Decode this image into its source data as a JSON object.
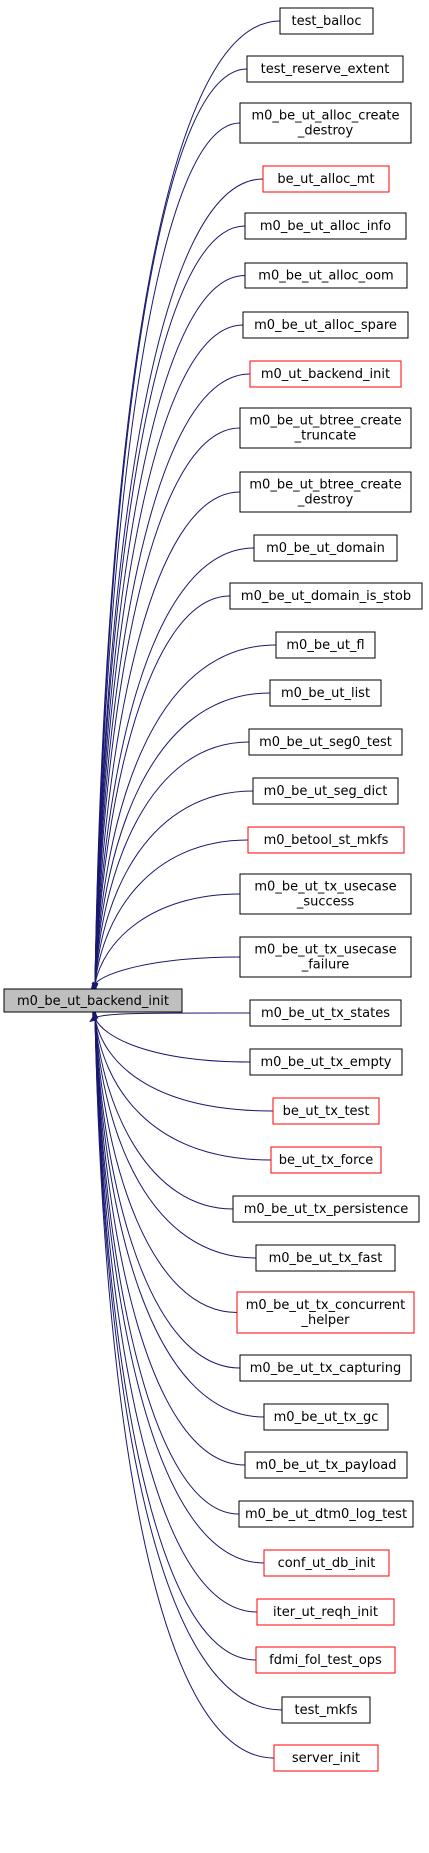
{
  "root": {
    "label": "m0_be_ut_backend_init"
  },
  "colors": {
    "edge": "#191970",
    "box_black": "#000000",
    "box_red": "#ff0000",
    "root_fill": "#bfbfbf"
  },
  "callers": [
    {
      "lines": [
        "test_balloc"
      ],
      "color": "black"
    },
    {
      "lines": [
        "test_reserve_extent"
      ],
      "color": "black"
    },
    {
      "lines": [
        "m0_be_ut_alloc_create",
        "_destroy"
      ],
      "color": "black"
    },
    {
      "lines": [
        "be_ut_alloc_mt"
      ],
      "color": "red"
    },
    {
      "lines": [
        "m0_be_ut_alloc_info"
      ],
      "color": "black"
    },
    {
      "lines": [
        "m0_be_ut_alloc_oom"
      ],
      "color": "black"
    },
    {
      "lines": [
        "m0_be_ut_alloc_spare"
      ],
      "color": "black"
    },
    {
      "lines": [
        "m0_ut_backend_init"
      ],
      "color": "red"
    },
    {
      "lines": [
        "m0_be_ut_btree_create",
        "_truncate"
      ],
      "color": "black"
    },
    {
      "lines": [
        "m0_be_ut_btree_create",
        "_destroy"
      ],
      "color": "black"
    },
    {
      "lines": [
        "m0_be_ut_domain"
      ],
      "color": "black"
    },
    {
      "lines": [
        "m0_be_ut_domain_is_stob"
      ],
      "color": "black"
    },
    {
      "lines": [
        "m0_be_ut_fl"
      ],
      "color": "black"
    },
    {
      "lines": [
        "m0_be_ut_list"
      ],
      "color": "black"
    },
    {
      "lines": [
        "m0_be_ut_seg0_test"
      ],
      "color": "black"
    },
    {
      "lines": [
        "m0_be_ut_seg_dict"
      ],
      "color": "black"
    },
    {
      "lines": [
        "m0_betool_st_mkfs"
      ],
      "color": "red"
    },
    {
      "lines": [
        "m0_be_ut_tx_usecase",
        "_success"
      ],
      "color": "black"
    },
    {
      "lines": [
        "m0_be_ut_tx_usecase",
        "_failure"
      ],
      "color": "black"
    },
    {
      "lines": [
        "m0_be_ut_tx_states"
      ],
      "color": "black"
    },
    {
      "lines": [
        "m0_be_ut_tx_empty"
      ],
      "color": "black"
    },
    {
      "lines": [
        "be_ut_tx_test"
      ],
      "color": "red"
    },
    {
      "lines": [
        "be_ut_tx_force"
      ],
      "color": "red"
    },
    {
      "lines": [
        "m0_be_ut_tx_persistence"
      ],
      "color": "black"
    },
    {
      "lines": [
        "m0_be_ut_tx_fast"
      ],
      "color": "black"
    },
    {
      "lines": [
        "m0_be_ut_tx_concurrent",
        "_helper"
      ],
      "color": "red"
    },
    {
      "lines": [
        "m0_be_ut_tx_capturing"
      ],
      "color": "black"
    },
    {
      "lines": [
        "m0_be_ut_tx_gc"
      ],
      "color": "black"
    },
    {
      "lines": [
        "m0_be_ut_tx_payload"
      ],
      "color": "black"
    },
    {
      "lines": [
        "m0_be_ut_dtm0_log_test"
      ],
      "color": "black"
    },
    {
      "lines": [
        "conf_ut_db_init"
      ],
      "color": "red"
    },
    {
      "lines": [
        "iter_ut_reqh_init"
      ],
      "color": "red"
    },
    {
      "lines": [
        "fdmi_fol_test_ops"
      ],
      "color": "red"
    },
    {
      "lines": [
        "test_mkfs"
      ],
      "color": "black"
    },
    {
      "lines": [
        "server_init"
      ],
      "color": "red"
    }
  ]
}
